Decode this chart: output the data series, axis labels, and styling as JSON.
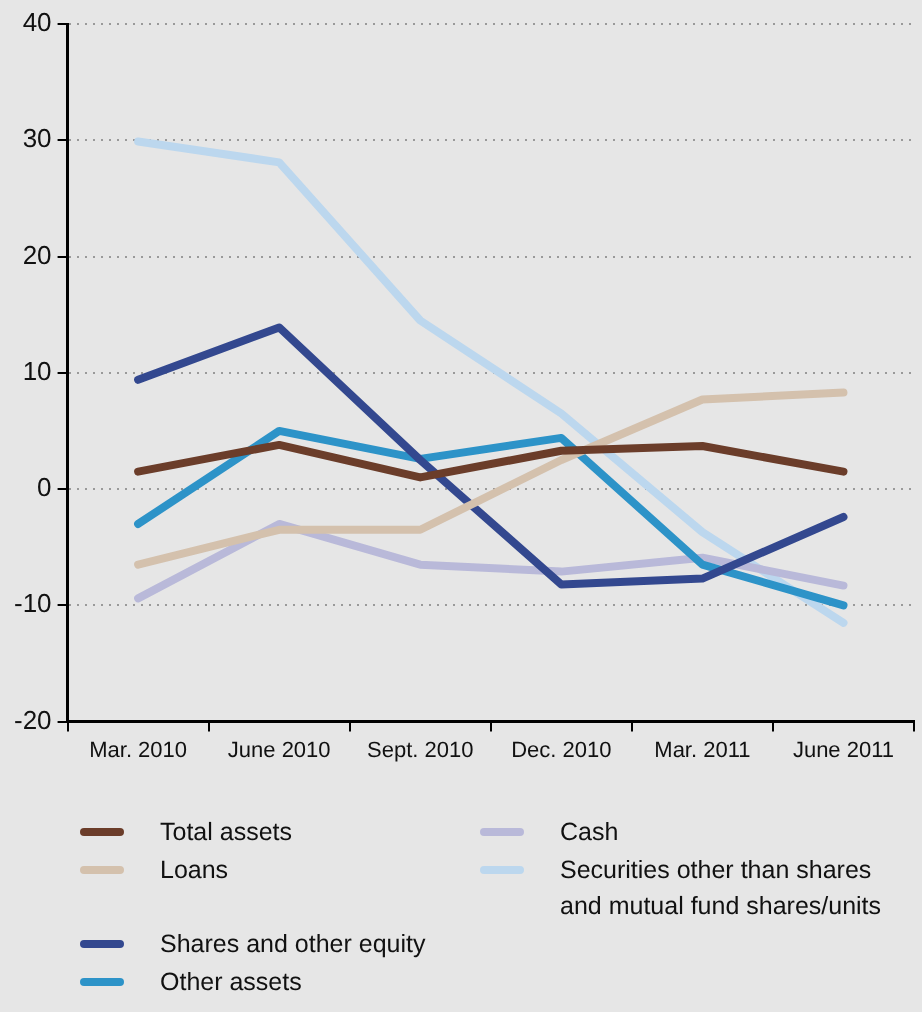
{
  "chart_data": {
    "type": "line",
    "categories": [
      "Mar. 2010",
      "June 2010",
      "Sept. 2010",
      "Dec. 2010",
      "Mar. 2011",
      "June 2011"
    ],
    "series": [
      {
        "name": "Total assets",
        "color": "#6b3d2a",
        "values": [
          1.5,
          3.8,
          1,
          3.3,
          3.7,
          1.5
        ]
      },
      {
        "name": "Loans",
        "color": "#d4c1ad",
        "values": [
          -6.5,
          -3.5,
          -3.5,
          2.5,
          7.7,
          8.3
        ]
      },
      {
        "name": "Shares and other equity",
        "color": "#33488f",
        "values": [
          9.4,
          13.9,
          2.5,
          -8.2,
          -7.7,
          -2.4
        ]
      },
      {
        "name": "Other assets",
        "color": "#2d93c8",
        "values": [
          -3,
          5,
          2.6,
          4.4,
          -6.5,
          -10
        ]
      },
      {
        "name": "Cash",
        "color": "#b9b9d9",
        "values": [
          -9.4,
          -3,
          -6.5,
          -7.1,
          -5.9,
          -8.3
        ]
      },
      {
        "name": "Securities other than shares and mutual fund shares/units",
        "color": "#bcd7ee",
        "values": [
          29.9,
          28.1,
          14.5,
          6.5,
          -3.7,
          -11.5
        ]
      }
    ],
    "ylim": [
      -20,
      40
    ],
    "yticks": [
      -20,
      -10,
      0,
      10,
      20,
      30,
      40
    ],
    "grid": "y",
    "legend": "bottom",
    "marker": "none",
    "line_style": "solid"
  }
}
